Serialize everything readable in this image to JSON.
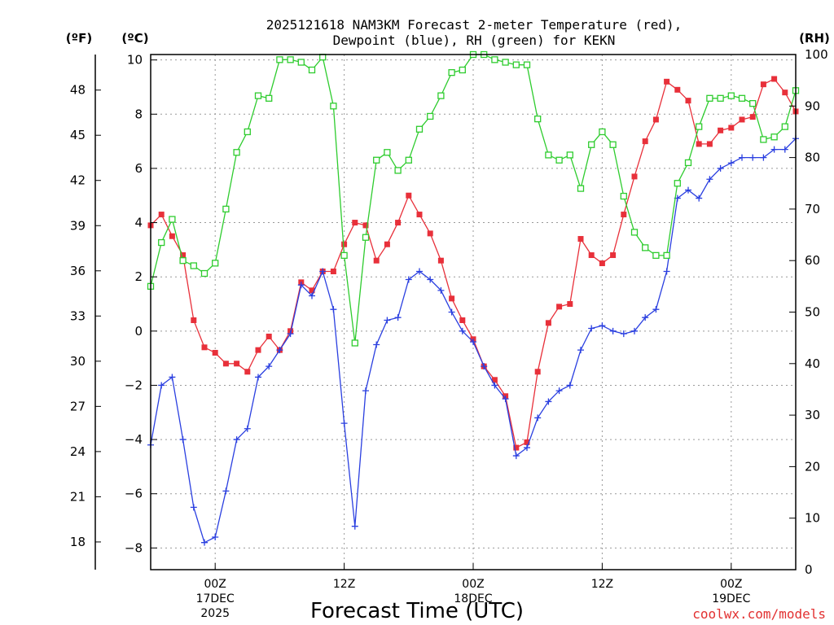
{
  "header": {
    "title_line1": "2025121618 NAM3KM Forecast 2-meter Temperature (red),",
    "title_line2": "Dewpoint (blue), RH (green) for KEKN"
  },
  "axes": {
    "far_left_unit": "(ºF)",
    "left_unit": "(ºC)",
    "right_unit": "(RH)",
    "xlabel": "Forecast Time (UTC)"
  },
  "credit": {
    "text": "coolwx.com/models",
    "color": "#e23030"
  },
  "chart_data": {
    "type": "line",
    "title": "2025121618 NAM3KM Forecast 2-meter Temperature (red), Dewpoint (blue), RH (green) for KEKN",
    "xlabel": "Forecast Time (UTC)",
    "x_unit": "hours",
    "x_first_label": "2025-12-16 18Z",
    "xlim": [
      0,
      60
    ],
    "ylim_celsius": [
      -8.8,
      10.2
    ],
    "ylim_rh": [
      0,
      100
    ],
    "yticks_celsius": [
      -8,
      -6,
      -4,
      -2,
      0,
      2,
      4,
      6,
      8,
      10
    ],
    "yticks_fahrenheit": [
      18,
      21,
      24,
      27,
      30,
      33,
      36,
      39,
      42,
      45,
      48
    ],
    "yticks_rh": [
      0,
      10,
      20,
      30,
      40,
      50,
      60,
      70,
      80,
      90,
      100
    ],
    "xticks": [
      {
        "x": 6,
        "lines": [
          "00Z",
          "17DEC",
          "2025"
        ]
      },
      {
        "x": 18,
        "lines": [
          "12Z"
        ]
      },
      {
        "x": 30,
        "lines": [
          "00Z",
          "18DEC"
        ]
      },
      {
        "x": 42,
        "lines": [
          "12Z"
        ]
      },
      {
        "x": 54,
        "lines": [
          "00Z",
          "19DEC"
        ]
      }
    ],
    "grid": true,
    "series": [
      {
        "name": "Temperature",
        "axis": "celsius",
        "color": "#e8303a",
        "marker": "filled-square",
        "x": [
          0,
          1,
          2,
          3,
          4,
          5,
          6,
          7,
          8,
          9,
          10,
          11,
          12,
          13,
          14,
          15,
          16,
          17,
          18,
          19,
          20,
          21,
          22,
          23,
          24,
          25,
          26,
          27,
          28,
          29,
          30,
          31,
          32,
          33,
          34,
          35,
          36,
          37,
          38,
          39,
          40,
          41,
          42,
          43,
          44,
          45,
          46,
          47,
          48,
          49,
          50,
          51,
          52,
          53,
          54,
          55,
          56,
          57,
          58,
          59,
          60
        ],
        "values": [
          3.9,
          4.3,
          3.5,
          2.8,
          0.4,
          -0.6,
          -0.8,
          -1.2,
          -1.2,
          -1.5,
          -0.7,
          -0.2,
          -0.7,
          0,
          1.8,
          1.5,
          2.2,
          2.2,
          3.2,
          4,
          3.9,
          2.6,
          3.2,
          4,
          5,
          4.3,
          3.6,
          2.6,
          1.2,
          0.4,
          -0.3,
          -1.3,
          -1.8,
          -2.4,
          -4.3,
          -4.1,
          -1.5,
          0.3,
          0.9,
          1,
          3.4,
          2.8,
          2.5,
          2.8,
          4.3,
          5.7,
          7,
          7.8,
          9.2,
          8.9,
          8.5,
          6.9,
          6.9,
          7.4,
          7.5,
          7.8,
          7.9,
          9.1,
          9.3,
          8.8,
          8.1
        ]
      },
      {
        "name": "Dewpoint",
        "axis": "celsius",
        "color": "#2a3fe0",
        "marker": "plus",
        "x": [
          0,
          1,
          2,
          3,
          4,
          5,
          6,
          7,
          8,
          9,
          10,
          11,
          12,
          13,
          14,
          15,
          16,
          17,
          18,
          19,
          20,
          21,
          22,
          23,
          24,
          25,
          26,
          27,
          28,
          29,
          30,
          31,
          32,
          33,
          34,
          35,
          36,
          37,
          38,
          39,
          40,
          41,
          42,
          43,
          44,
          45,
          46,
          47,
          48,
          49,
          50,
          51,
          52,
          53,
          54,
          55,
          56,
          57,
          58,
          59,
          60
        ],
        "values": [
          -4.2,
          -2,
          -1.7,
          -4,
          -6.5,
          -7.8,
          -7.6,
          -5.9,
          -4,
          -3.6,
          -1.7,
          -1.3,
          -0.7,
          -0.1,
          1.7,
          1.3,
          2.2,
          0.8,
          -3.4,
          -7.2,
          -2.2,
          -0.5,
          0.4,
          0.5,
          1.9,
          2.2,
          1.9,
          1.5,
          0.7,
          0,
          -0.4,
          -1.3,
          -2,
          -2.5,
          -4.6,
          -4.3,
          -3.2,
          -2.6,
          -2.2,
          -2,
          -0.7,
          0.1,
          0.2,
          0,
          -0.1,
          0,
          0.5,
          0.8,
          2.2,
          4.9,
          5.2,
          4.9,
          5.6,
          6,
          6.2,
          6.4,
          6.4,
          6.4,
          6.7,
          6.7,
          7.1
        ]
      },
      {
        "name": "RH",
        "axis": "rh",
        "color": "#2ecc2e",
        "marker": "open-square",
        "x": [
          0,
          1,
          2,
          3,
          4,
          5,
          6,
          7,
          8,
          9,
          10,
          11,
          12,
          13,
          14,
          15,
          16,
          17,
          18,
          19,
          20,
          21,
          22,
          23,
          24,
          25,
          26,
          27,
          28,
          29,
          30,
          31,
          32,
          33,
          34,
          35,
          36,
          37,
          38,
          39,
          40,
          41,
          42,
          43,
          44,
          45,
          46,
          47,
          48,
          49,
          50,
          51,
          52,
          53,
          54,
          55,
          56,
          57,
          58,
          59,
          60
        ],
        "values": [
          55,
          63.5,
          68,
          60,
          59,
          57.5,
          59.5,
          70,
          81,
          85,
          92,
          91.5,
          99,
          99,
          98.5,
          97,
          99.5,
          90,
          61,
          44,
          64.5,
          79.5,
          81,
          77.5,
          79.5,
          85.5,
          88,
          92,
          96.5,
          97,
          100,
          100.5,
          99,
          98.5,
          98,
          98,
          87.5,
          80.5,
          79.5,
          80.5,
          74,
          82.5,
          85,
          82.5,
          72.5,
          65.5,
          62.5,
          61,
          61,
          75,
          79,
          86,
          91.5,
          91.5,
          92,
          91.5,
          90.5,
          83.5,
          84,
          86,
          93
        ]
      }
    ]
  }
}
